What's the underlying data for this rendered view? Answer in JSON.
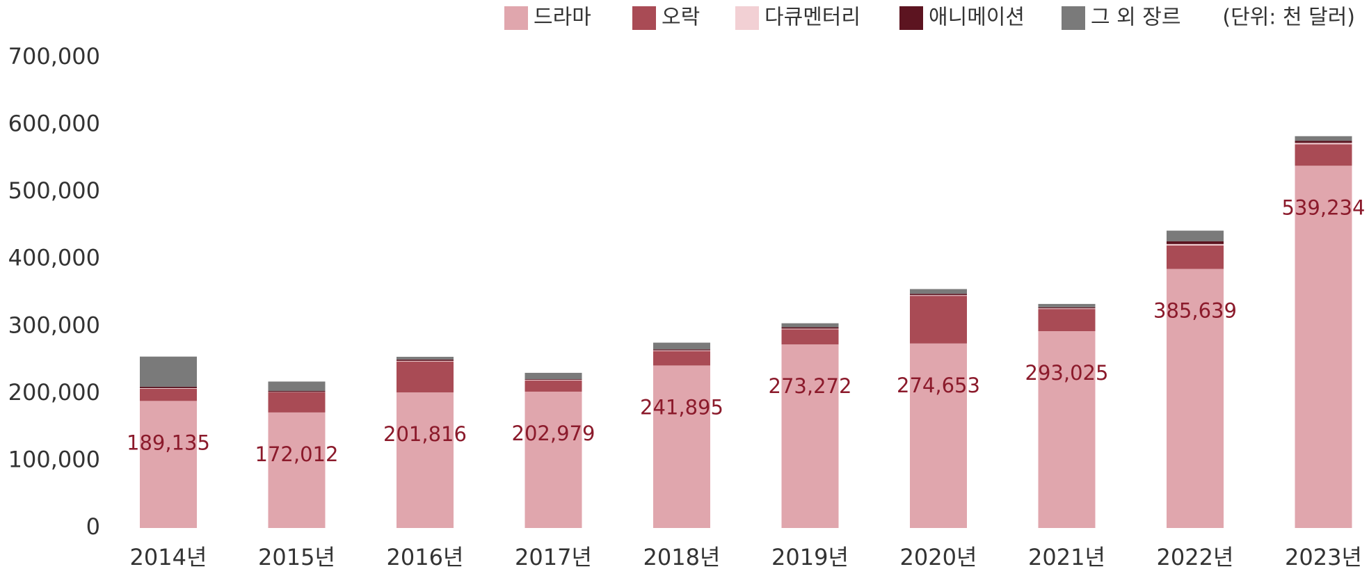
{
  "chart_data": {
    "type": "stacked_bar",
    "unit_note": "(단위: 천 달러)",
    "categories": [
      "2014년",
      "2015년",
      "2016년",
      "2017년",
      "2018년",
      "2019년",
      "2020년",
      "2021년",
      "2022년",
      "2023년"
    ],
    "series": [
      {
        "name": "드라마",
        "color": "#e0a6ad",
        "values": [
          189135,
          172012,
          201816,
          202979,
          241895,
          273272,
          274653,
          293025,
          385639,
          539234
        ],
        "value_labels": [
          "189,135",
          "172,012",
          "201,816",
          "202,979",
          "241,895",
          "273,272",
          "274,653",
          "293,025",
          "385,639",
          "539,234"
        ]
      },
      {
        "name": "오락",
        "color": "#a94b55",
        "values": [
          18000,
          30000,
          46000,
          16500,
          21500,
          22500,
          71000,
          33000,
          35000,
          32000
        ]
      },
      {
        "name": "다큐멘터리",
        "color": "#f2d0d4",
        "values": [
          1000,
          500,
          1000,
          1000,
          1000,
          1000,
          1000,
          1000,
          2000,
          2000
        ]
      },
      {
        "name": "애니메이션",
        "color": "#5c1420",
        "values": [
          2000,
          1500,
          2000,
          1000,
          1500,
          2000,
          2000,
          1500,
          4000,
          3000
        ]
      },
      {
        "name": "그 외 장르",
        "color": "#7a7a7a",
        "values": [
          45000,
          14000,
          4000,
          9500,
          10000,
          6000,
          7000,
          5000,
          16000,
          7000
        ]
      }
    ],
    "ylim": [
      0,
      700000
    ],
    "yticks": [
      0,
      {
        "value": 100000,
        "label": "100,000"
      },
      {
        "value": 200000,
        "label": "200,000"
      },
      {
        "value": 300000,
        "label": "300,000"
      },
      {
        "value": 400000,
        "label": "400,000"
      },
      {
        "value": 500000,
        "label": "500,000"
      },
      {
        "value": 600000,
        "label": "600,000"
      },
      {
        "value": 700000,
        "label": "700,000"
      }
    ],
    "grid": false
  }
}
